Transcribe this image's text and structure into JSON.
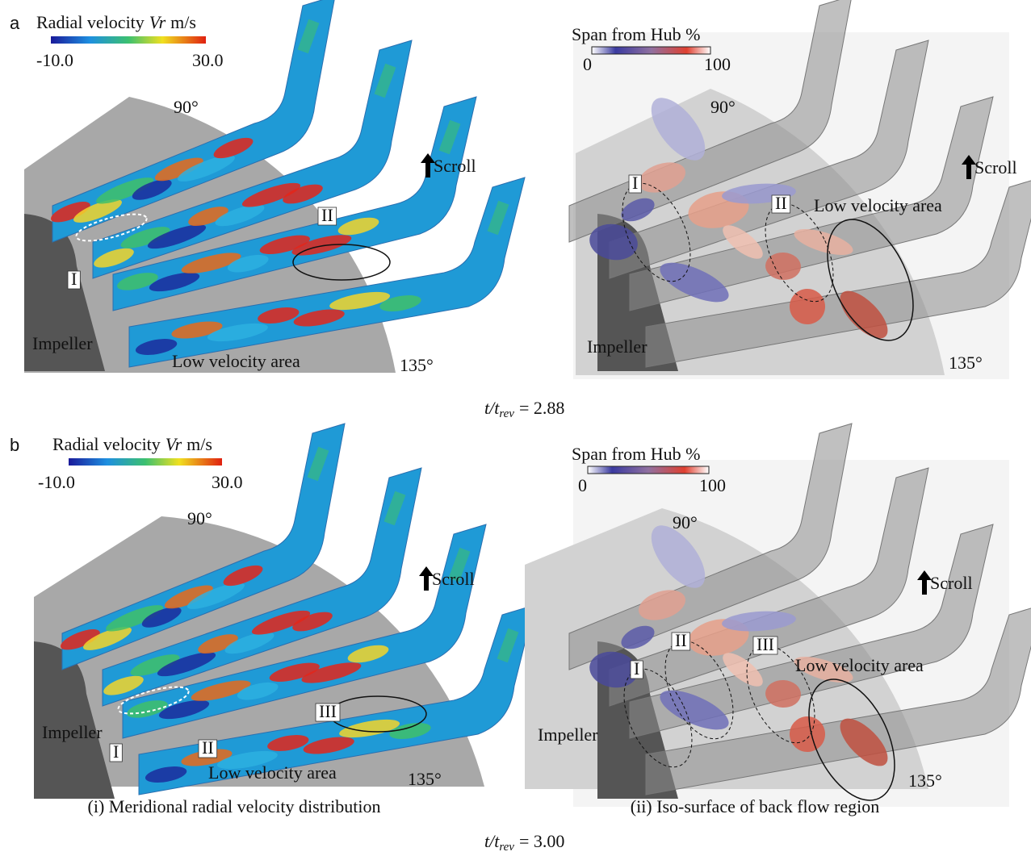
{
  "panels": [
    {
      "letter": "a",
      "left": {
        "colorbar": {
          "label": "Radial velocity",
          "symbol": "Vr",
          "unit": "m/s",
          "min": "-10.0",
          "max": "30.0"
        },
        "angle_top": "90°",
        "angle_bottom": "135°",
        "scroll": "Scroll",
        "impeller": "Impeller",
        "low_velocity": "Low velocity area",
        "markers": [
          "I",
          "II"
        ]
      },
      "right": {
        "colorbar": {
          "label": "Span from Hub %",
          "min": "0",
          "max": "100"
        },
        "angle_top": "90°",
        "angle_bottom": "135°",
        "scroll": "Scroll",
        "impeller": "Impeller",
        "low_velocity": "Low velocity area",
        "markers": [
          "I",
          "II"
        ]
      },
      "time": {
        "ratio": "t/t",
        "subscript": "rev",
        "value": "= 2.88"
      }
    },
    {
      "letter": "b",
      "left": {
        "colorbar": {
          "label": "Radial velocity",
          "symbol": "Vr",
          "unit": "m/s",
          "min": "-10.0",
          "max": "30.0"
        },
        "angle_top": "90°",
        "angle_bottom": "135°",
        "scroll": "Scroll",
        "impeller": "Impeller",
        "low_velocity": "Low velocity area",
        "markers": [
          "I",
          "II",
          "III"
        ]
      },
      "right": {
        "colorbar": {
          "label": "Span from Hub %",
          "min": "0",
          "max": "100"
        },
        "angle_top": "90°",
        "angle_bottom": "135°",
        "scroll": "Scroll",
        "impeller": "Impeller",
        "low_velocity": "Low velocity area",
        "markers": [
          "I",
          "II",
          "III"
        ]
      },
      "time": {
        "ratio": "t/t",
        "subscript": "rev",
        "value": "= 3.00"
      }
    }
  ],
  "captions": [
    "(i) Meridional radial velocity distribution",
    "(ii) Iso-surface of back flow region"
  ]
}
